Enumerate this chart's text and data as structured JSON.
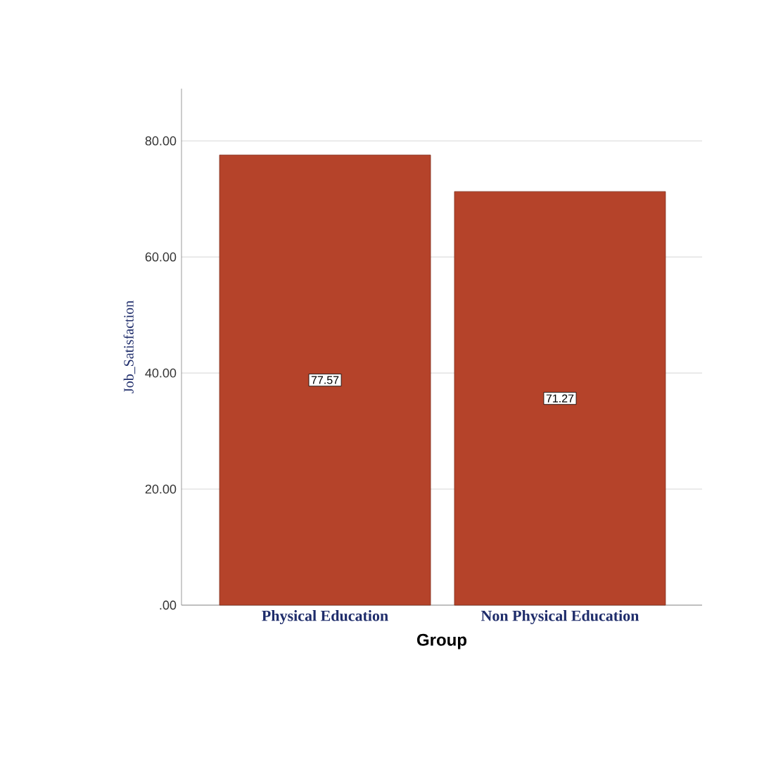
{
  "chart_data": {
    "type": "bar",
    "categories": [
      "Physical Education",
      "Non Physical Education"
    ],
    "values": [
      77.57,
      71.27
    ],
    "color": "#b5432a",
    "xlabel": "Group",
    "ylabel": "Job_Satisfaction",
    "ylim": [
      0,
      89
    ],
    "yticks": [
      {
        "value": 0,
        "label": ".00"
      },
      {
        "value": 20,
        "label": "20.00"
      },
      {
        "value": 40,
        "label": "40.00"
      },
      {
        "value": 60,
        "label": "60.00"
      },
      {
        "value": 80,
        "label": "80.00"
      }
    ],
    "grid": "y",
    "data_labels": true
  }
}
